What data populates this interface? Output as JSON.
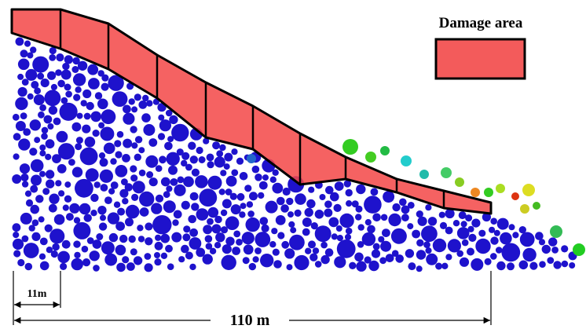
{
  "legend": {
    "label": "Damage area"
  },
  "dimensions": {
    "segment": "11m",
    "total": "110 m"
  }
}
